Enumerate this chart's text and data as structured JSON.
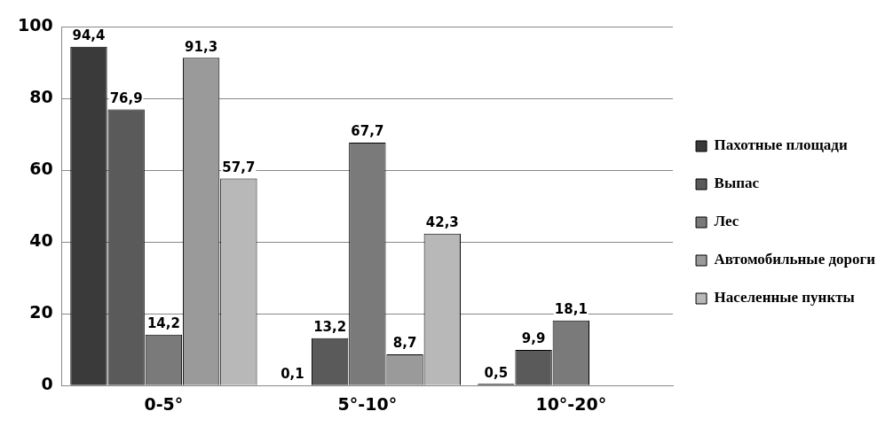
{
  "chart_data": {
    "type": "bar",
    "categories": [
      "0-5°",
      "5°-10°",
      "10°-20°"
    ],
    "series": [
      {
        "name": "Пахотные площади",
        "color": "#3a3a3a",
        "values": [
          94.4,
          0.1,
          0.5
        ],
        "value_labels": [
          "94,4",
          "0,1",
          "0,5"
        ]
      },
      {
        "name": "Выпас",
        "color": "#5a5a5a",
        "values": [
          76.9,
          13.2,
          9.9
        ],
        "value_labels": [
          "76,9",
          "13,2",
          "9,9"
        ]
      },
      {
        "name": "Лес",
        "color": "#7a7a7a",
        "values": [
          14.2,
          67.7,
          18.1
        ],
        "value_labels": [
          "14,2",
          "67,7",
          "18,1"
        ]
      },
      {
        "name": "Автомобильные дороги",
        "color": "#9a9a9a",
        "values": [
          91.3,
          8.7,
          null
        ],
        "value_labels": [
          "91,3",
          "8,7",
          null
        ]
      },
      {
        "name": "Населенные пункты",
        "color": "#b8b8b8",
        "values": [
          57.7,
          42.3,
          null
        ],
        "value_labels": [
          "57,7",
          "42,3",
          null
        ]
      }
    ],
    "ylim": [
      0,
      100
    ],
    "yticks": [
      0,
      20,
      40,
      60,
      80,
      100
    ],
    "grid": "y",
    "legend": "right"
  }
}
